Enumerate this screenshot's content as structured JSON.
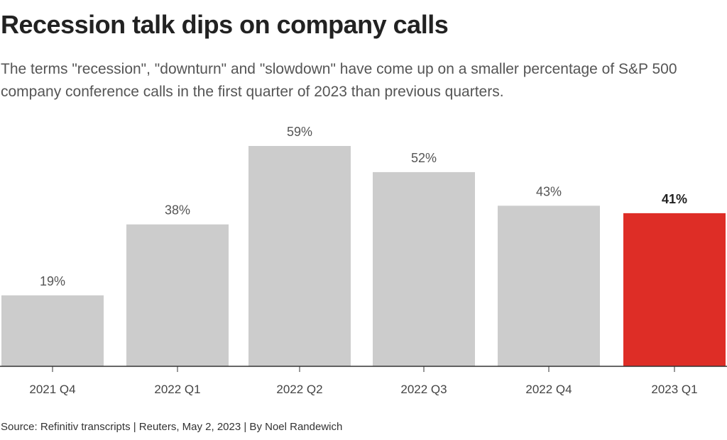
{
  "title": "Recession talk dips on company calls",
  "subtitle": "The terms \"recession\", \"downturn\" and \"slowdown\" have come up on a smaller percentage of S&P 500 company conference calls in the first quarter of 2023 than previous quarters.",
  "source": "Source: Refinitiv transcripts | Reuters, May 2, 2023 | By Noel Randewich",
  "colors": {
    "bar": "#cccccc",
    "highlight": "#de2d26",
    "axis": "#333333"
  },
  "chart_data": {
    "type": "bar",
    "title": "Recession talk dips on company calls",
    "xlabel": "",
    "ylabel": "",
    "categories": [
      "2021 Q4",
      "2022 Q1",
      "2022 Q2",
      "2022 Q3",
      "2022 Q4",
      "2023 Q1"
    ],
    "values": [
      19,
      38,
      59,
      52,
      43,
      41
    ],
    "labels": [
      "19%",
      "38%",
      "59%",
      "52%",
      "43%",
      "41%"
    ],
    "highlight_index": 5,
    "ylim": [
      0,
      59
    ],
    "grid": false
  }
}
